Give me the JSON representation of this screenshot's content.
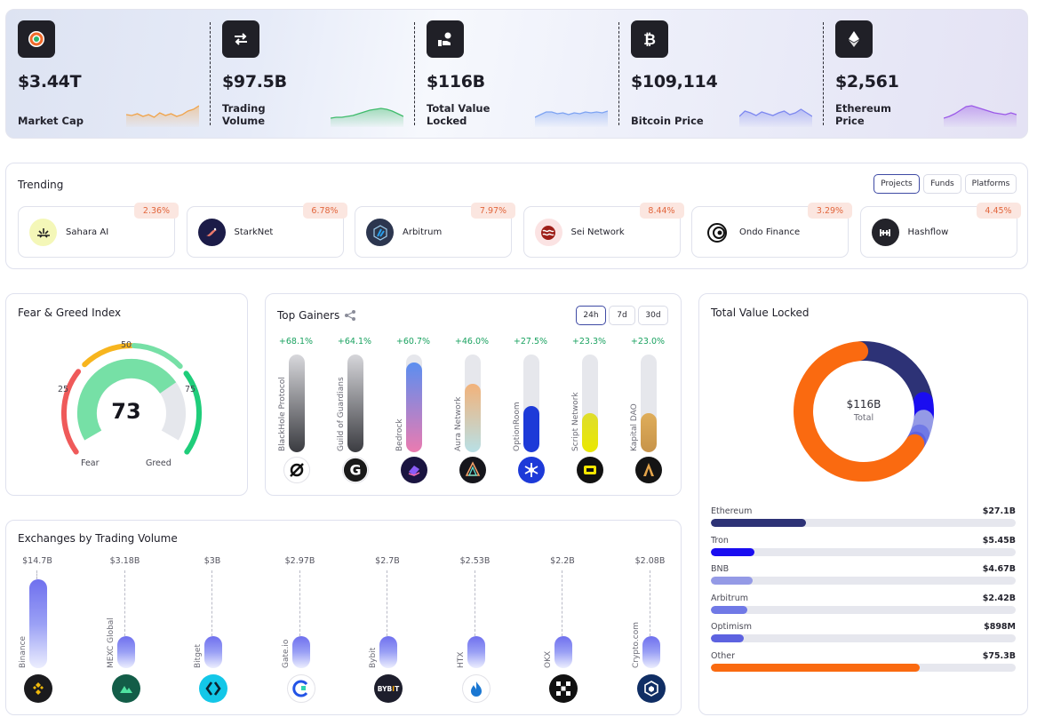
{
  "stats": [
    {
      "value": "$3.44T",
      "label": "Market Cap",
      "icon": "market-cap-icon",
      "color": "#f0a44b"
    },
    {
      "value": "$97.5B",
      "label": "Trading Volume",
      "icon": "swap-arrows-icon",
      "color": "#3fbb6b"
    },
    {
      "value": "$116B",
      "label": "Total Value Locked",
      "icon": "hand-coin-icon",
      "color": "#7da3f2"
    },
    {
      "value": "$109,114",
      "label": "Bitcoin Price",
      "icon": "bitcoin-icon",
      "color": "#7d88f0"
    },
    {
      "value": "$2,561",
      "label": "Ethereum Price",
      "icon": "ethereum-icon",
      "color": "#9b59e8"
    }
  ],
  "trending": {
    "title": "Trending",
    "tabs": [
      "Projects",
      "Funds",
      "Platforms"
    ],
    "active_tab": "Projects",
    "items": [
      {
        "name": "Sahara AI",
        "change": "2.36%",
        "icon": "sahara-ai-icon",
        "color": "#f4f7b8"
      },
      {
        "name": "StarkNet",
        "change": "6.78%",
        "icon": "starknet-icon",
        "color": "#1c1c48"
      },
      {
        "name": "Arbitrum",
        "change": "7.97%",
        "icon": "arbitrum-icon",
        "color": "#2c364f"
      },
      {
        "name": "Sei Network",
        "change": "8.44%",
        "icon": "sei-network-icon",
        "color": "#fbe3e3"
      },
      {
        "name": "Ondo Finance",
        "change": "3.29%",
        "icon": "ondo-finance-icon",
        "color": "#ffffff"
      },
      {
        "name": "Hashflow",
        "change": "4.45%",
        "icon": "hashflow-icon",
        "color": "#23232a"
      }
    ]
  },
  "fear_greed": {
    "title": "Fear & Greed Index",
    "value": "73",
    "value_num": 73,
    "tick_25": "25",
    "tick_50": "50",
    "tick_75": "75",
    "label_fear": "Fear",
    "label_greed": "Greed"
  },
  "top_gainers": {
    "title": "Top Gainers",
    "tabs": [
      "24h",
      "7d",
      "30d"
    ],
    "active_tab": "24h",
    "items": [
      {
        "name": "BlackHole Protocol",
        "change": "+68.1%",
        "level": 1.0,
        "icon": "blackhole-protocol-icon",
        "grad": [
          "#d8d8dc",
          "#3a3b40"
        ],
        "bg": "#ffffff"
      },
      {
        "name": "Guild of Guardians",
        "change": "+64.1%",
        "level": 1.0,
        "icon": "guild-of-guardians-icon",
        "grad": [
          "#d6d6da",
          "#3b3c41"
        ],
        "bg": "#ffffff"
      },
      {
        "name": "Bedrock",
        "change": "+60.7%",
        "level": 0.92,
        "icon": "bedrock-icon",
        "grad": [
          "#5b8ef0",
          "#eb7bb0"
        ],
        "bg": "#1a1440"
      },
      {
        "name": "Aura Network",
        "change": "+46.0%",
        "level": 0.7,
        "icon": "aura-network-icon",
        "grad": [
          "#f2b27a",
          "#b8e0e6"
        ],
        "bg": "#16161c"
      },
      {
        "name": "OptionRoom",
        "change": "+27.5%",
        "level": 0.47,
        "icon": "optionroom-icon",
        "grad": [
          "#1d3ad8",
          "#1d3ad8"
        ],
        "bg": "#1d3ad8"
      },
      {
        "name": "Script Network",
        "change": "+23.3%",
        "level": 0.4,
        "icon": "script-network-icon",
        "grad": [
          "#dedd2d",
          "#eae800"
        ],
        "bg": "#111111"
      },
      {
        "name": "Kapital DAO",
        "change": "+23.0%",
        "level": 0.4,
        "icon": "kapital-dao-icon",
        "grad": [
          "#dfad5a",
          "#c7944a"
        ],
        "bg": "#141414"
      }
    ]
  },
  "tvl": {
    "title": "Total Value Locked",
    "center_value": "$116B",
    "center_label": "Total",
    "items": [
      {
        "name": "Ethereum",
        "amount": "$27.1B",
        "share": 0.233,
        "color": "#2d3276",
        "bar": 0.313
      },
      {
        "name": "Tron",
        "amount": "$5.45B",
        "share": 0.047,
        "color": "#1a0df0",
        "bar": 0.143
      },
      {
        "name": "BNB",
        "amount": "$4.67B",
        "share": 0.04,
        "color": "#949ae6",
        "bar": 0.137
      },
      {
        "name": "Arbitrum",
        "amount": "$2.42B",
        "share": 0.021,
        "color": "#7079e6",
        "bar": 0.12
      },
      {
        "name": "Optimism",
        "amount": "$898M",
        "share": 0.008,
        "color": "#5d62e0",
        "bar": 0.108
      },
      {
        "name": "Other",
        "amount": "$75.3B",
        "share": 0.651,
        "color": "#fa6a10",
        "bar": 0.684
      }
    ]
  },
  "exchanges": {
    "title": "Exchanges by Trading Volume",
    "items": [
      {
        "name": "Binance",
        "volume": "$14.7B",
        "value": 14.7,
        "icon": "binance-icon",
        "bg": "#1b1b1e",
        "fg": "#f0b90b"
      },
      {
        "name": "MEXC Global",
        "volume": "$3.18B",
        "value": 3.18,
        "icon": "mexc-icon",
        "bg": "#135d48",
        "fg": "#4fe3a1"
      },
      {
        "name": "Bitget",
        "volume": "$3B",
        "value": 3.0,
        "icon": "bitget-icon",
        "bg": "#13c7e8",
        "fg": "#0b2230"
      },
      {
        "name": "Gate.io",
        "volume": "$2.97B",
        "value": 2.97,
        "icon": "gate-io-icon",
        "bg": "#ffffff",
        "fg": "#2354e6"
      },
      {
        "name": "Bybit",
        "volume": "$2.7B",
        "value": 2.7,
        "icon": "bybit-icon",
        "bg": "#1d1e2c",
        "fg": "#ffffff"
      },
      {
        "name": "HTX",
        "volume": "$2.53B",
        "value": 2.53,
        "icon": "htx-icon",
        "bg": "#ffffff",
        "fg": "#1a77d2"
      },
      {
        "name": "OKX",
        "volume": "$2.2B",
        "value": 2.2,
        "icon": "okx-icon",
        "bg": "#111111",
        "fg": "#ffffff"
      },
      {
        "name": "Crypto.com",
        "volume": "$2.08B",
        "value": 2.08,
        "icon": "crypto-com-icon",
        "bg": "#102e64",
        "fg": "#ffffff"
      }
    ]
  }
}
